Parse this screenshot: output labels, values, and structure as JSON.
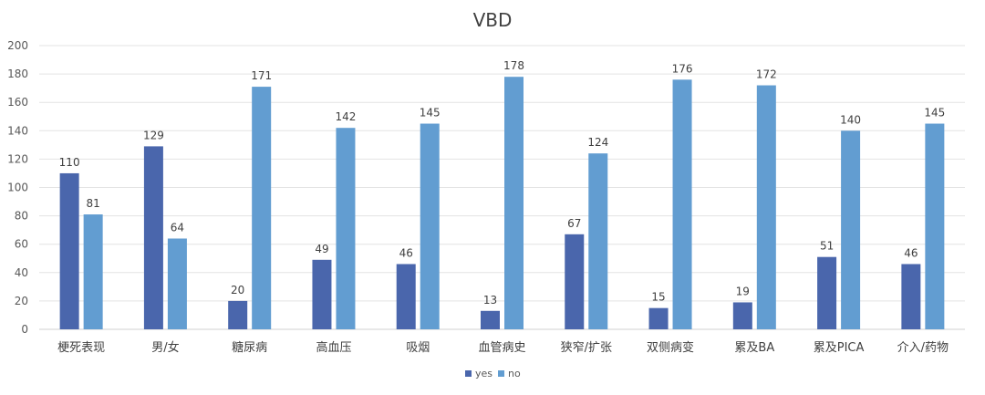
{
  "chart_data": {
    "type": "bar",
    "title": "VBD",
    "categories": [
      "梗死表现",
      "男/女",
      "糖尿病",
      "高血压",
      "吸烟",
      "血管病史",
      "狭窄/扩张",
      "双侧病变",
      "累及BA",
      "累及PICA",
      "介入/药物"
    ],
    "series": [
      {
        "name": "yes",
        "values": [
          110,
          129,
          20,
          49,
          46,
          13,
          67,
          15,
          19,
          51,
          46
        ],
        "color": "#4A66AC"
      },
      {
        "name": "no",
        "values": [
          81,
          64,
          171,
          142,
          145,
          178,
          124,
          176,
          172,
          140,
          145
        ],
        "color": "#629DD1"
      }
    ],
    "ylim": [
      0,
      200
    ],
    "yticks": [
      0,
      20,
      40,
      60,
      80,
      100,
      120,
      140,
      160,
      180,
      200
    ],
    "grid": true,
    "legend_position": "bottom",
    "xlabel": "",
    "ylabel": ""
  }
}
